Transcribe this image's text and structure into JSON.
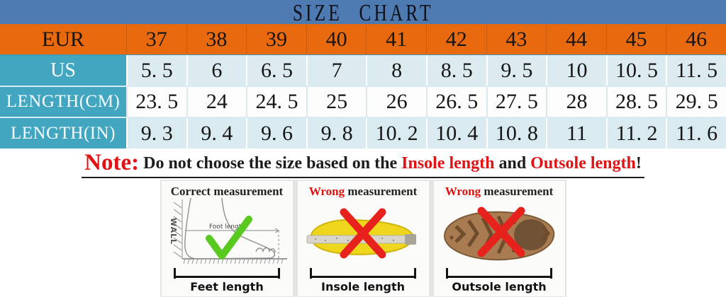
{
  "title": "SIZE CHART",
  "colors": {
    "title_bg": "#4e7ab2",
    "eur_row_bg": "#e8690e",
    "header_col_bg": "#43a6c1",
    "cell_light_bg": "#dcebf0",
    "cell_white_bg": "#fdfdfd",
    "note_red": "#e01213",
    "check_green": "#58c91f",
    "cross_red": "#e7221d",
    "insole_yellow": "#edd61c",
    "outsole_brown": "#a87c50"
  },
  "chart_data": {
    "type": "table",
    "title": "SIZE CHART",
    "rows": [
      {
        "key": "eur",
        "label": "EUR",
        "values": [
          "37",
          "38",
          "39",
          "40",
          "41",
          "42",
          "43",
          "44",
          "45",
          "46"
        ]
      },
      {
        "key": "us",
        "label": "US",
        "values": [
          "5. 5",
          "6",
          "6. 5",
          "7",
          "8",
          "8. 5",
          "9. 5",
          "10",
          "10. 5",
          "11. 5"
        ]
      },
      {
        "key": "length-cm",
        "label": "LENGTH(CM)",
        "values": [
          "23. 5",
          "24",
          "24. 5",
          "25",
          "26",
          "26. 5",
          "27. 5",
          "28",
          "28. 5",
          "29. 5"
        ]
      },
      {
        "key": "length-in",
        "label": "LENGTH(IN)",
        "values": [
          "9. 3",
          "9. 4",
          "9. 6",
          "9. 8",
          "10. 2",
          "10. 4",
          "10. 8",
          "11",
          "11. 2",
          "11. 6"
        ]
      }
    ]
  },
  "note": {
    "prefix": "Note:",
    "part1": "Do not choose the size based on the ",
    "red1": "Insole length",
    "part2": " and ",
    "red2": "Outsole length",
    "suffix": "!"
  },
  "panels": [
    {
      "key": "correct",
      "title_red": "",
      "title_black": "Correct measurement",
      "wall_label": "WALL",
      "measure_label": "Foot length",
      "bottom_label": "Feet length"
    },
    {
      "key": "wrong-insole",
      "title_red": "Wrong",
      "title_black": " measurement",
      "bottom_label": "Insole length"
    },
    {
      "key": "wrong-outsole",
      "title_red": "Wrong",
      "title_black": " measurement",
      "bottom_label": "Outsole length"
    }
  ]
}
